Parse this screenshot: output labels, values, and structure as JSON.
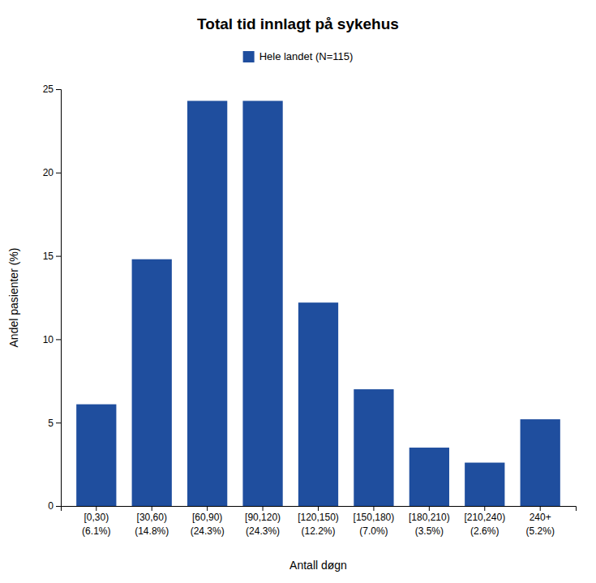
{
  "chart_data": {
    "type": "bar",
    "title": "Total tid innlagt på sykehus",
    "xlabel": "Antall døgn",
    "ylabel": "Andel pasienter (%)",
    "categories": [
      "[0,30)",
      "[30,60)",
      "[60,90)",
      "[90,120)",
      "[120,150)",
      "[150,180)",
      "[180,210)",
      "[210,240)",
      "240+"
    ],
    "series": [
      {
        "name": "Hele landet (N=115)",
        "color": "#1f4e9e",
        "values": [
          6.1,
          14.8,
          24.3,
          24.3,
          12.2,
          7.0,
          3.5,
          2.6,
          5.2
        ],
        "value_labels": [
          "(6.1%)",
          "(14.8%)",
          "(24.3%)",
          "(24.3%)",
          "(12.2%)",
          "(7.0%)",
          "(3.5%)",
          "(2.6%)",
          "(5.2%)"
        ]
      }
    ],
    "ylim": [
      0,
      25
    ],
    "yticks": [
      0,
      5,
      10,
      15,
      20,
      25
    ],
    "grid": false,
    "legend": "top"
  }
}
